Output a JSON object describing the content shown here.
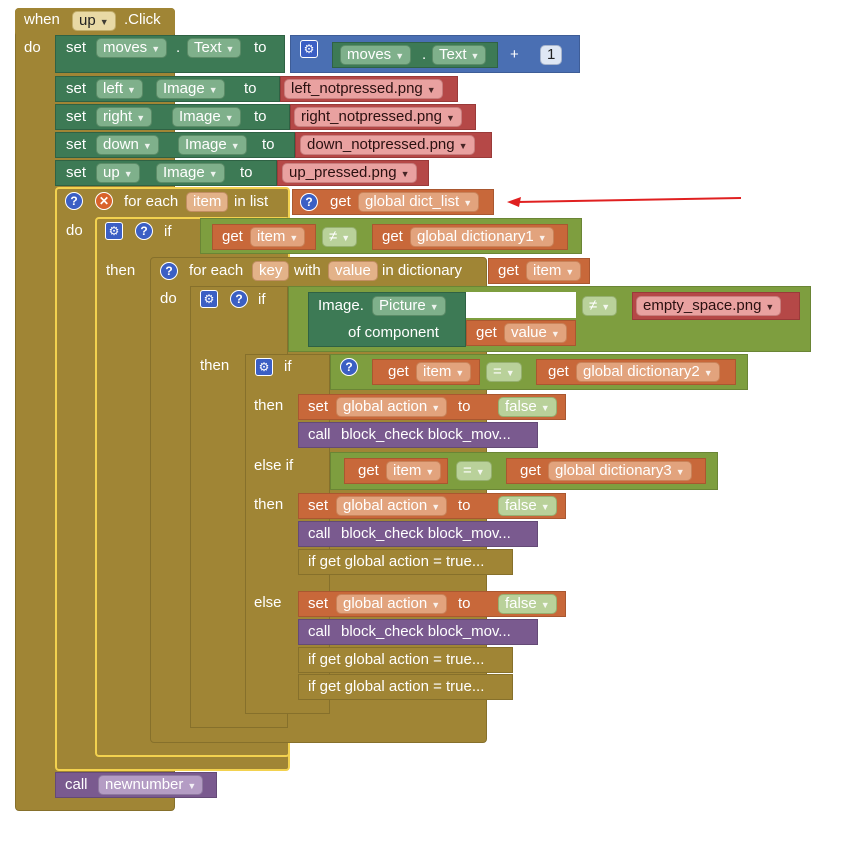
{
  "event": {
    "when": "when",
    "component": "up",
    "event_name": ".Click",
    "do": "do"
  },
  "moves_stmt": {
    "set": "set",
    "component": "moves",
    "dot": ".",
    "property": "Text",
    "to": "to",
    "inner_component": "moves",
    "inner_property": "Text",
    "op": "+",
    "number": "1"
  },
  "image_stmts": [
    {
      "set": "set",
      "component": "left",
      "property": "Image",
      "to": "to",
      "value": "left_notpressed.png"
    },
    {
      "set": "set",
      "component": "right",
      "property": "Image",
      "to": "to",
      "value": "right_notpressed.png"
    },
    {
      "set": "set",
      "component": "down",
      "property": "Image",
      "to": "to",
      "value": "down_notpressed.png"
    },
    {
      "set": "set",
      "component": "up",
      "property": "Image",
      "to": "to",
      "value": "up_pressed.png"
    }
  ],
  "for_each": {
    "label": "for each",
    "var": "item",
    "in_list": "in list",
    "get": "get",
    "list": "global dict_list",
    "do": "do"
  },
  "if1": {
    "if": "if",
    "get": "get",
    "left": "item",
    "op": "≠",
    "get2": "get",
    "right": "global dictionary1",
    "then": "then"
  },
  "for_key": {
    "label": "for each",
    "key": "key",
    "with": "with",
    "value": "value",
    "in_dict": "in dictionary",
    "get": "get",
    "dict": "item",
    "do": "do"
  },
  "if2": {
    "if": "if",
    "image": "Image.",
    "property": "Picture",
    "of_component": "of component",
    "get": "get",
    "val": "value",
    "op": "≠",
    "text": "empty_space.png",
    "then": "then"
  },
  "if3": {
    "if": "if",
    "get": "get",
    "left": "item",
    "op": "=",
    "get2": "get",
    "right": "global dictionary2",
    "then": "then",
    "else_if": "else if",
    "else": "else"
  },
  "cond2": {
    "get": "get",
    "left": "item",
    "op": "=",
    "get2": "get",
    "right": "global dictionary3"
  },
  "set_action": {
    "set": "set",
    "var": "global action",
    "to": "to",
    "value": "false"
  },
  "call_check": {
    "call": "call",
    "name": "block_check block_mov..."
  },
  "collapsed_if": "if get global action = true...",
  "call_new": {
    "call": "call",
    "name": "newnumber"
  },
  "colors": {
    "event": "#a08535",
    "control_outline": "#f3d24f",
    "compare": "#7e9e3f",
    "component": "#3d7a55",
    "procedure": "#7a5a8f",
    "variable": "#c8683a",
    "text": "#b54847",
    "math": "#4a6fb3",
    "arrow": "#e02020"
  }
}
